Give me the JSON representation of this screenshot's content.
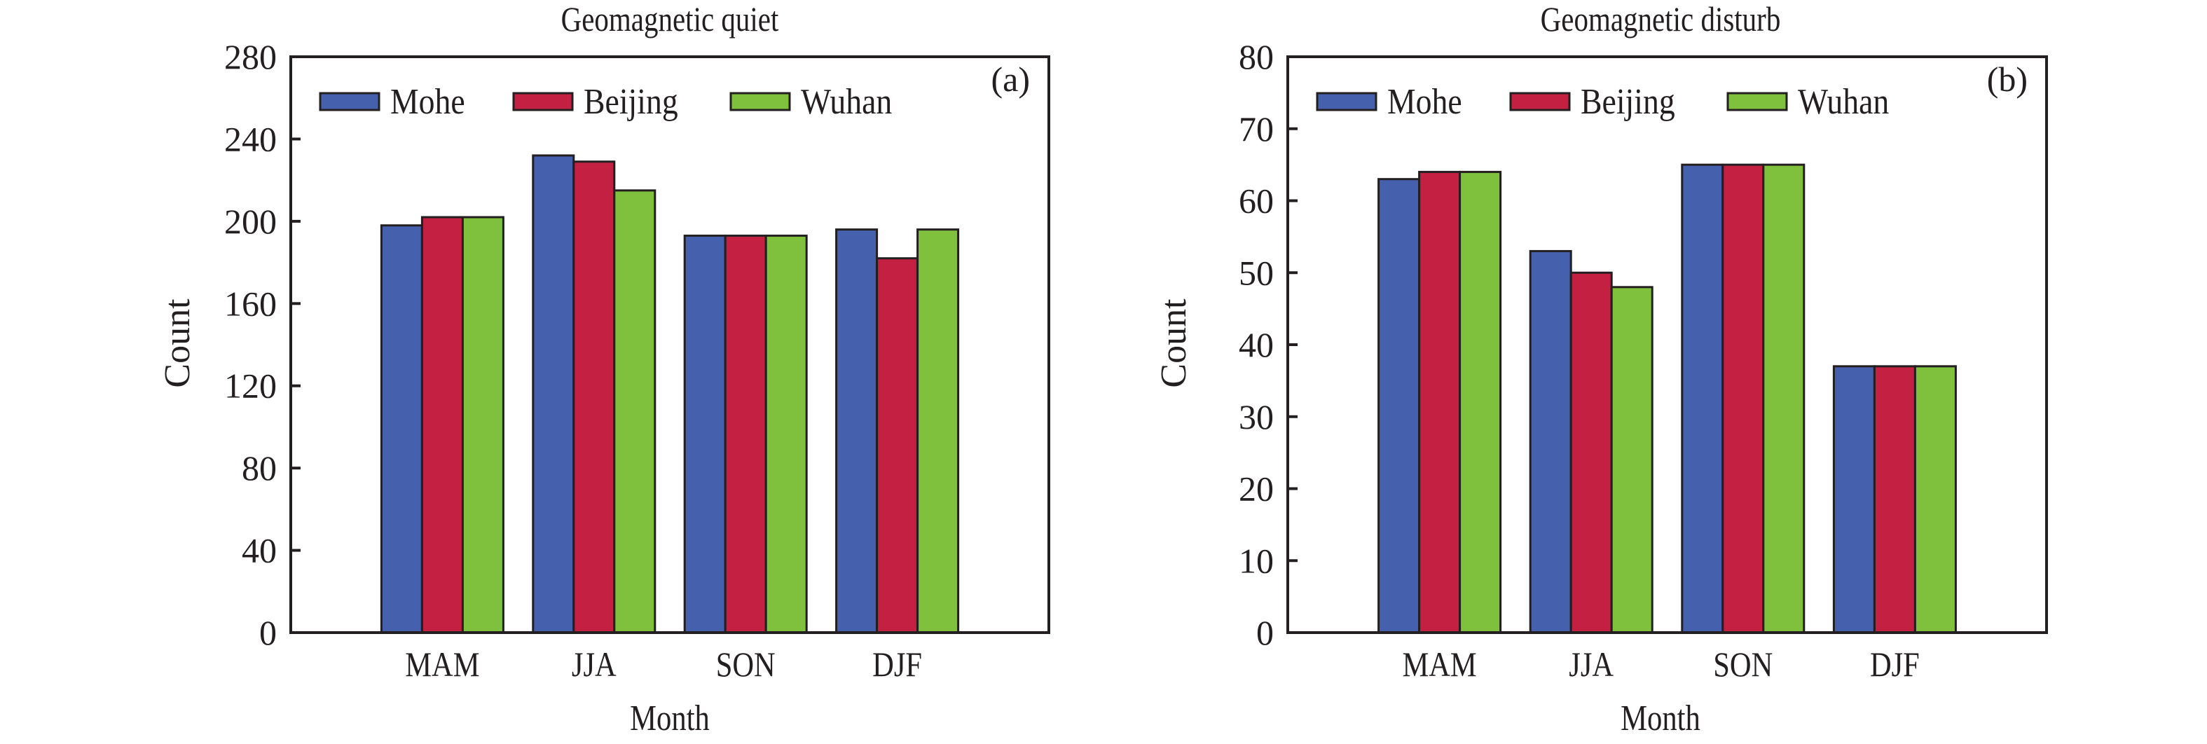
{
  "chart_data": [
    {
      "type": "bar",
      "title": "Geomagnetic quiet",
      "panel_tag": "(a)",
      "xlabel": "Month",
      "ylabel": "Count",
      "ylim": [
        0,
        280
      ],
      "yticks": [
        0,
        40,
        80,
        120,
        160,
        200,
        240,
        280
      ],
      "categories": [
        "MAM",
        "JJA",
        "SON",
        "DJF"
      ],
      "legend_position": "top-left",
      "grid": false,
      "series": [
        {
          "name": "Mohe",
          "color": "#4560AD",
          "values": [
            198,
            232,
            193,
            196
          ]
        },
        {
          "name": "Beijing",
          "color": "#C42042",
          "values": [
            202,
            229,
            193,
            182
          ]
        },
        {
          "name": "Wuhan",
          "color": "#7FC13D",
          "values": [
            202,
            215,
            193,
            196
          ]
        }
      ]
    },
    {
      "type": "bar",
      "title": "Geomagnetic disturb",
      "panel_tag": "(b)",
      "xlabel": "Month",
      "ylabel": "Count",
      "ylim": [
        0,
        80
      ],
      "yticks": [
        0,
        10,
        20,
        30,
        40,
        50,
        60,
        70,
        80
      ],
      "categories": [
        "MAM",
        "JJA",
        "SON",
        "DJF"
      ],
      "legend_position": "top-left",
      "grid": false,
      "series": [
        {
          "name": "Mohe",
          "color": "#4560AD",
          "values": [
            63,
            53,
            65,
            37
          ]
        },
        {
          "name": "Beijing",
          "color": "#C42042",
          "values": [
            64,
            50,
            65,
            37
          ]
        },
        {
          "name": "Wuhan",
          "color": "#7FC13D",
          "values": [
            64,
            48,
            65,
            37
          ]
        }
      ]
    }
  ]
}
